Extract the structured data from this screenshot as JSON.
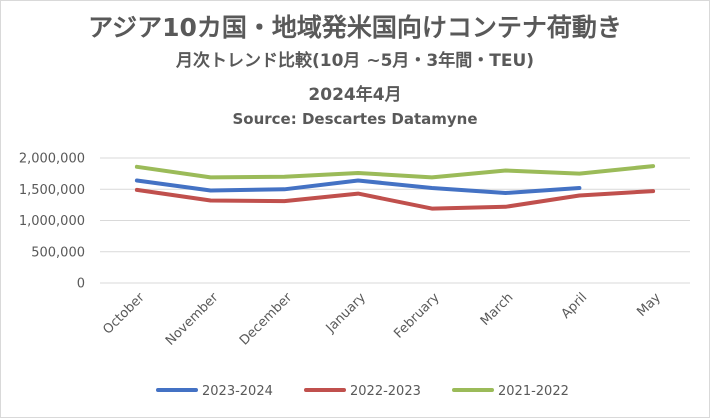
{
  "chart_data": {
    "type": "line",
    "title": "アジア10カ国・地域発米国向けコンテナ荷動き",
    "subtitle": "月次トレンド比較(10月 ~5月・3年間・TEU)",
    "subtitle2": "2024年4月",
    "source": "Source: Descartes Datamyne",
    "categories": [
      "October",
      "November",
      "December",
      "January",
      "February",
      "March",
      "April",
      "May"
    ],
    "ylim": [
      0,
      2000000
    ],
    "yticks": [
      "2,000,000",
      "1,500,000",
      "1,000,000",
      "500,000",
      "0"
    ],
    "series": [
      {
        "name": "2023-2024",
        "color": "#4472C4",
        "values": [
          1640000,
          1480000,
          1500000,
          1640000,
          1520000,
          1440000,
          1520000,
          null
        ]
      },
      {
        "name": "2022-2023",
        "color": "#C0504D",
        "values": [
          1490000,
          1320000,
          1310000,
          1430000,
          1190000,
          1220000,
          1400000,
          1470000
        ]
      },
      {
        "name": "2021-2022",
        "color": "#9BBB59",
        "values": [
          1860000,
          1690000,
          1700000,
          1760000,
          1690000,
          1800000,
          1750000,
          1870000
        ]
      }
    ],
    "grid": true,
    "legend": "bottom"
  }
}
